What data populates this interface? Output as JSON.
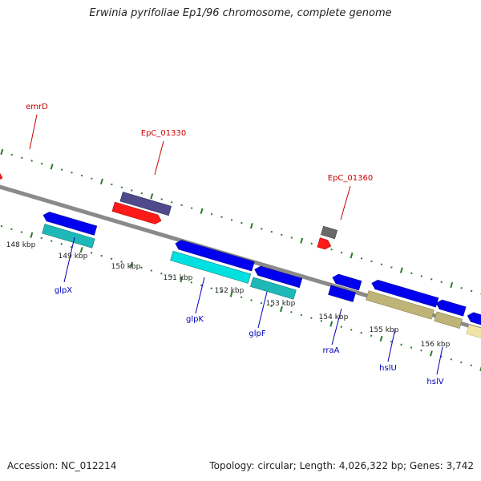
{
  "title": "Erwinia pyrifoliae Ep1/96 chromosome, complete genome",
  "footer": {
    "accession": "Accession: NC_012214",
    "topology": "Topology: circular; Length: 4,026,322 bp; Genes: 3,742"
  },
  "colors": {
    "backbone": "#8a8a8a",
    "tick": "#2a7a2a",
    "forward_label": "#cc0000",
    "reverse_label": "#0000bb",
    "scale_label": "#222222"
  },
  "scale_labels": [
    "148 kbp",
    "149 kbp",
    "150 kbp",
    "151 kbp",
    "152 kbp",
    "153 kbp",
    "154 kbp",
    "155 kbp",
    "156 kbp"
  ],
  "gene_labels": {
    "forward": [
      "emrD",
      "EpC_01330",
      "EpC_01360"
    ],
    "reverse": [
      "glpX",
      "glpK",
      "glpF",
      "rraA",
      "hslU",
      "hslV"
    ]
  }
}
